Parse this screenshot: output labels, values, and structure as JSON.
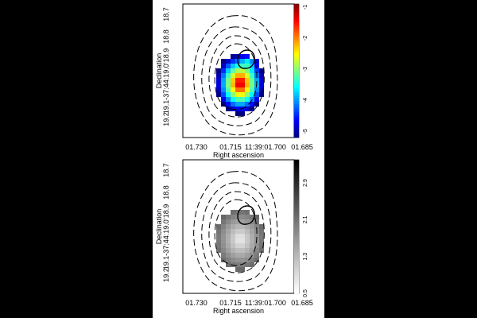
{
  "colors": {
    "page_background": "#000000",
    "figure_background": "#ffffff",
    "contour": "#000000"
  },
  "panels": [
    {
      "id": "top",
      "colormap": "jet",
      "colorbar": {
        "ticks": [
          "-1",
          "-2",
          "-3",
          "-4",
          "-5"
        ],
        "vmin": -5.2,
        "vmax": -0.9
      },
      "x_ticks": [
        "01.730",
        "01.715",
        "11:39:01.700",
        "01.685"
      ],
      "y_ticks": [
        "18.7",
        "18.8",
        "19.1-37:44:19.0‘18.9",
        "19.2"
      ],
      "xlabel": "Right ascension",
      "ylabel": "Declination"
    },
    {
      "id": "bottom",
      "colormap": "gray",
      "colorbar": {
        "ticks": [
          "2.9",
          "2.1",
          "1.3",
          "0.5"
        ],
        "vmin": 0.5,
        "vmax": 3.4
      },
      "x_ticks": [
        "01.730",
        "01.715",
        "11:39:01.700",
        "01.685"
      ],
      "y_ticks": [
        "18.7",
        "18.8",
        "19.1-37:44:19.0‘18.9",
        "19.2"
      ],
      "xlabel": "Right ascension",
      "ylabel": "Declination"
    }
  ]
}
